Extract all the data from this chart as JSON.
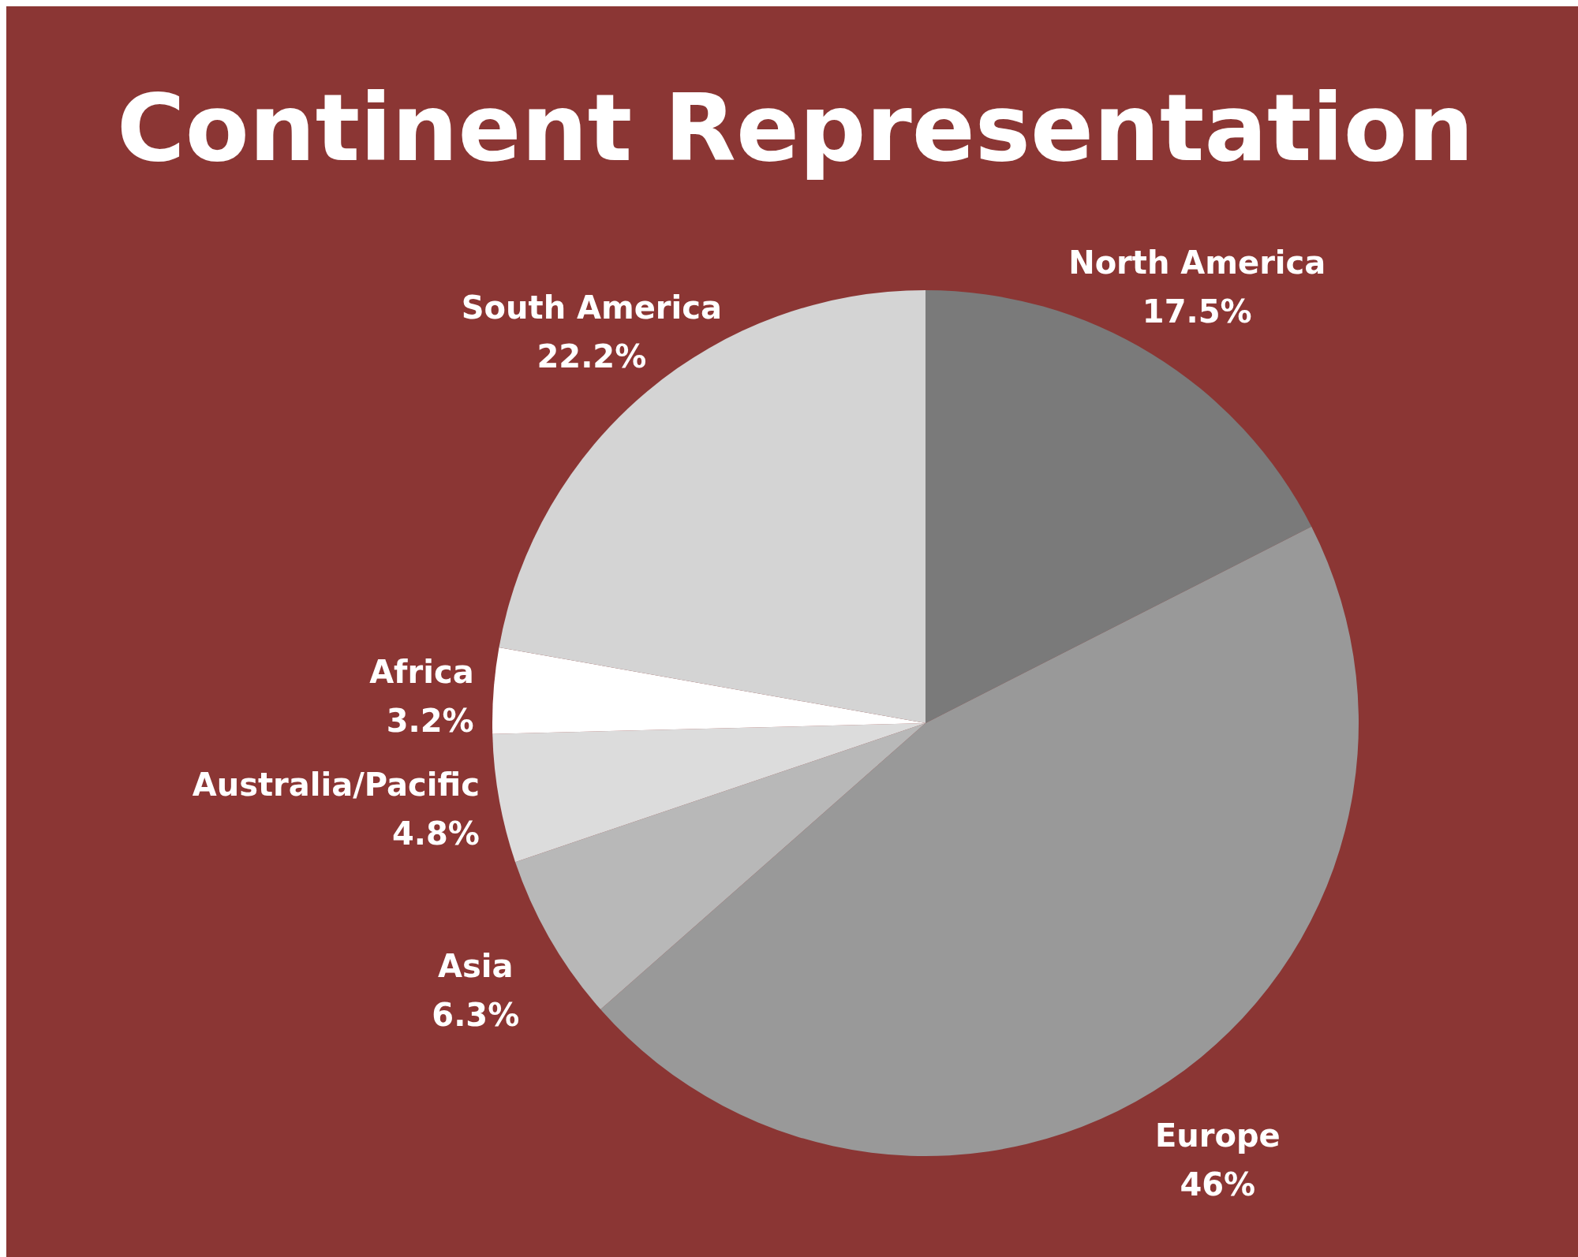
{
  "chart_data": {
    "type": "pie",
    "title": "Continent Representation",
    "categories": [
      "North America",
      "Europe",
      "Asia",
      "Australia/Pacific",
      "Africa",
      "South America"
    ],
    "values": [
      17.5,
      46,
      6.3,
      4.8,
      3.2,
      22.2
    ],
    "value_labels": [
      "17.5%",
      "46%",
      "6.3%",
      "4.8%",
      "3.2%",
      "22.2%"
    ],
    "colors": [
      "#7a7a7a",
      "#999999",
      "#b8b8b8",
      "#dcdcdc",
      "#ffffff",
      "#d4d4d4"
    ]
  }
}
